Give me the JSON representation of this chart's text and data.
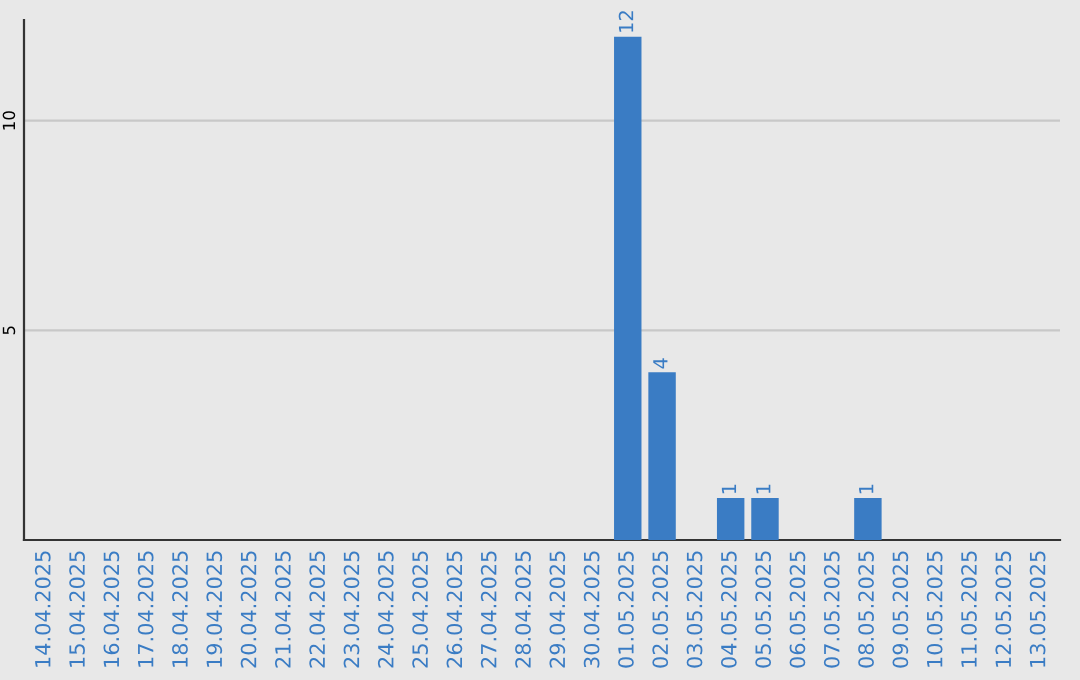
{
  "chart_data": {
    "type": "bar",
    "categories": [
      "14.04.2025",
      "15.04.2025",
      "16.04.2025",
      "17.04.2025",
      "18.04.2025",
      "19.04.2025",
      "20.04.2025",
      "21.04.2025",
      "22.04.2025",
      "23.04.2025",
      "24.04.2025",
      "25.04.2025",
      "26.04.2025",
      "27.04.2025",
      "28.04.2025",
      "29.04.2025",
      "30.04.2025",
      "01.05.2025",
      "02.05.2025",
      "03.05.2025",
      "04.05.2025",
      "05.05.2025",
      "06.05.2025",
      "07.05.2025",
      "08.05.2025",
      "09.05.2025",
      "10.05.2025",
      "11.05.2025",
      "12.05.2025",
      "13.05.2025"
    ],
    "values": [
      0,
      0,
      0,
      0,
      0,
      0,
      0,
      0,
      0,
      0,
      0,
      0,
      0,
      0,
      0,
      0,
      0,
      12,
      4,
      0,
      1,
      1,
      0,
      0,
      1,
      0,
      0,
      0,
      0,
      0
    ],
    "value_labels": [
      null,
      null,
      null,
      null,
      null,
      null,
      null,
      null,
      null,
      null,
      null,
      null,
      null,
      null,
      null,
      null,
      null,
      "12",
      "4",
      null,
      "1",
      "1",
      null,
      null,
      "1",
      null,
      null,
      null,
      null,
      null
    ],
    "color": "#3a7cc4",
    "ylim": [
      0,
      12.4
    ],
    "yticks": [
      5,
      10
    ],
    "grid": "y"
  }
}
